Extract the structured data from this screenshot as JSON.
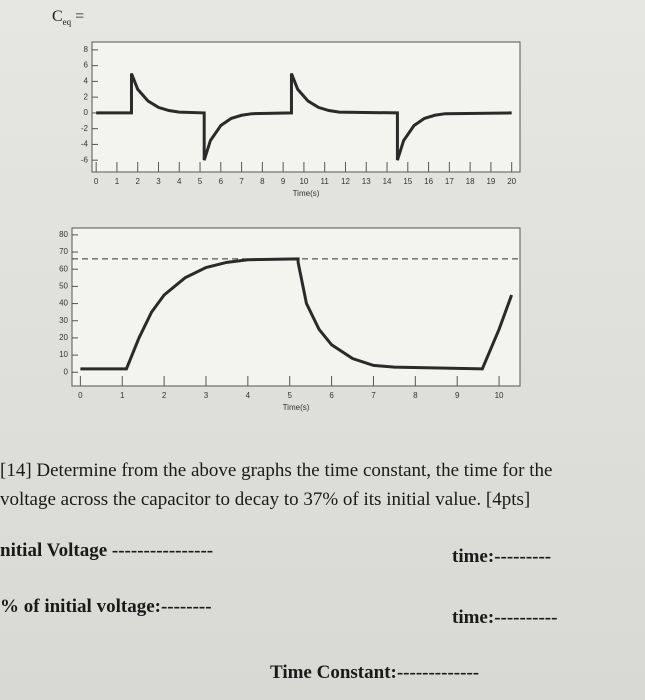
{
  "header": {
    "symbol": "C",
    "subscript": "eq",
    "sign": "="
  },
  "chart_data": [
    {
      "type": "line",
      "x_label": "Time(s)",
      "xlim": [
        -0.2,
        20.4
      ],
      "ylim": [
        -7.5,
        9
      ],
      "xticks": [
        0,
        1,
        2,
        3,
        4,
        5,
        6,
        7,
        8,
        9,
        10,
        11,
        12,
        13,
        14,
        15,
        16,
        17,
        18,
        19,
        20
      ],
      "yticks": [
        8,
        6,
        4,
        2,
        0,
        -2,
        -4,
        -6
      ],
      "series": [
        {
          "color": "#2a2a2a",
          "x": [
            0,
            1.7,
            1.7,
            2.0,
            2.5,
            3,
            3.5,
            4,
            5.2,
            5.2,
            5.5,
            6,
            6.5,
            7,
            7.5,
            9.4,
            9.4,
            9.7,
            10.2,
            10.7,
            11.2,
            11.7,
            14.5,
            14.5,
            14.8,
            15.3,
            15.8,
            16.3,
            16.8,
            20
          ],
          "values": [
            0,
            0,
            5,
            3,
            1.5,
            0.7,
            0.3,
            0.1,
            0,
            -6,
            -3.5,
            -1.6,
            -0.7,
            -0.3,
            -0.1,
            0,
            5,
            3,
            1.5,
            0.7,
            0.3,
            0.1,
            0,
            -6,
            -3.5,
            -1.6,
            -0.7,
            -0.3,
            -0.1,
            0
          ]
        }
      ]
    },
    {
      "type": "line",
      "x_label": "Time(s)",
      "xlim": [
        -0.2,
        10.5
      ],
      "ylim": [
        -8,
        84
      ],
      "xticks": [
        0,
        1,
        2,
        3,
        4,
        5,
        6,
        7,
        8,
        9,
        10
      ],
      "yticks": [
        80,
        70,
        60,
        50,
        40,
        30,
        20,
        10,
        0
      ],
      "hline": 66,
      "series": [
        {
          "color": "#2a2a2a",
          "x": [
            0,
            1.1,
            1.4,
            1.7,
            2,
            2.5,
            3,
            3.5,
            4,
            5.2,
            5.2,
            5.4,
            5.7,
            6,
            6.5,
            7,
            7.5,
            9.6,
            10.0,
            10.3
          ],
          "values": [
            2,
            2,
            20,
            35,
            45,
            55,
            61,
            64,
            65.5,
            66,
            64,
            40,
            25,
            16,
            8,
            4,
            3,
            2,
            25,
            45
          ]
        }
      ]
    }
  ],
  "question": [
    "[14] Determine from the above graphs the time constant, the time for the",
    "voltage across the capacitor to decay to 37% of its initial value. [4pts]"
  ],
  "answers": {
    "initial_voltage": "nitial Voltage ----------------",
    "time_1": "time:---------",
    "percent_voltage": "% of initial voltage:--------",
    "time_2": "time:----------",
    "time_constant": "Time Constant:-------------"
  }
}
